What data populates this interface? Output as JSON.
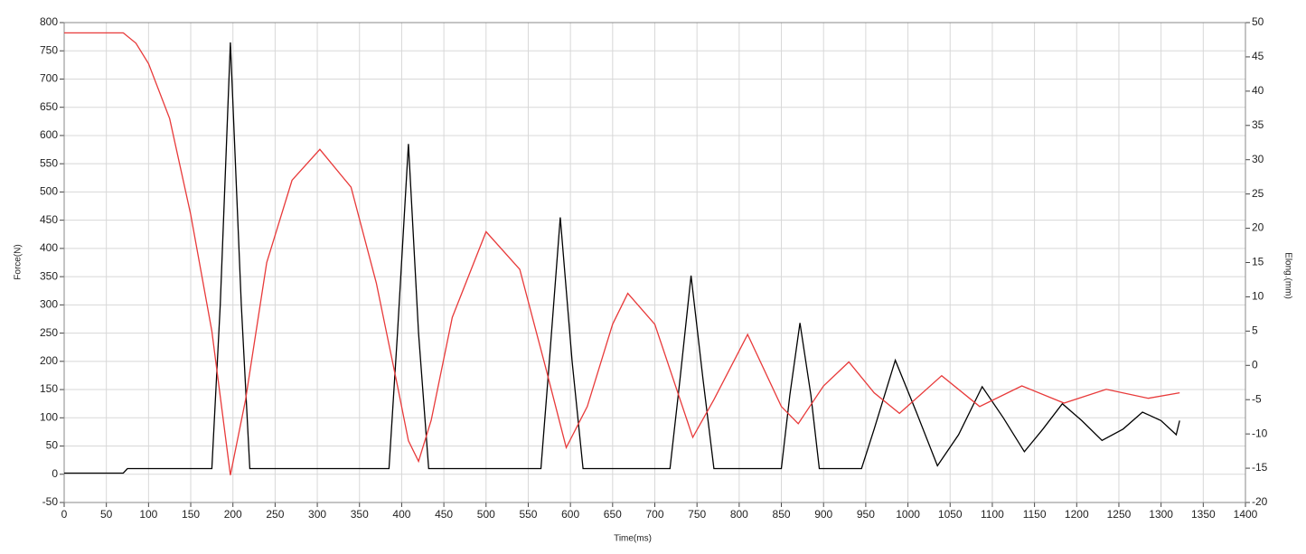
{
  "chart_data": {
    "type": "line",
    "xlabel": "Time(ms)",
    "ylabel": "Force(N)",
    "y2label": "Elong.(mm)",
    "xlim": [
      0,
      1400
    ],
    "xticks": [
      0,
      50,
      100,
      150,
      200,
      250,
      300,
      350,
      400,
      450,
      500,
      550,
      600,
      650,
      700,
      750,
      800,
      850,
      900,
      950,
      1000,
      1050,
      1100,
      1150,
      1200,
      1250,
      1300,
      1350,
      1400
    ],
    "ylim": [
      -50,
      800
    ],
    "yticks": [
      -50,
      0,
      50,
      100,
      150,
      200,
      250,
      300,
      350,
      400,
      450,
      500,
      550,
      600,
      650,
      700,
      750,
      800
    ],
    "y2lim": [
      -20,
      50
    ],
    "y2ticks": [
      -20,
      -15,
      -10,
      -5,
      0,
      5,
      10,
      15,
      20,
      25,
      30,
      35,
      40,
      45,
      50
    ],
    "grid": true,
    "series": [
      {
        "color": "#000000",
        "axis": "y",
        "x": [
          0,
          70,
          75,
          175,
          185,
          197,
          210,
          220,
          230,
          385,
          395,
          408,
          420,
          432,
          440,
          565,
          575,
          588,
          602,
          615,
          625,
          718,
          730,
          743,
          757,
          770,
          780,
          850,
          860,
          872,
          885,
          895,
          905,
          945,
          960,
          985,
          1010,
          1035,
          1060,
          1088,
          1113,
          1138,
          1160,
          1183,
          1206,
          1230,
          1255,
          1278,
          1300,
          1318,
          1322
        ],
        "values": [
          2,
          2,
          10,
          10,
          300,
          765,
          300,
          10,
          10,
          10,
          250,
          585,
          250,
          10,
          10,
          10,
          200,
          455,
          200,
          10,
          10,
          10,
          170,
          352,
          170,
          10,
          10,
          10,
          140,
          268,
          140,
          10,
          10,
          10,
          80,
          202,
          110,
          15,
          70,
          155,
          100,
          40,
          80,
          125,
          95,
          60,
          80,
          110,
          95,
          70,
          95
        ]
      },
      {
        "color": "#e83a3a",
        "axis": "y2",
        "x": [
          0,
          70,
          85,
          100,
          125,
          150,
          175,
          197,
          215,
          240,
          270,
          303,
          340,
          370,
          395,
          408,
          420,
          435,
          460,
          500,
          540,
          570,
          595,
          620,
          650,
          668,
          700,
          730,
          745,
          770,
          810,
          850,
          870,
          900,
          930,
          960,
          990,
          1040,
          1085,
          1135,
          1185,
          1235,
          1285,
          1322
        ],
        "values": [
          48.5,
          48.5,
          47,
          44,
          36,
          22,
          5,
          -16,
          -5,
          15,
          27,
          31.5,
          26,
          12,
          -3,
          -11,
          -14,
          -8,
          7,
          19.5,
          14,
          0,
          -12,
          -6,
          6,
          10.5,
          6,
          -5,
          -10.5,
          -5,
          4.5,
          -6,
          -8.5,
          -3,
          0.5,
          -4,
          -7,
          -1.5,
          -6,
          -3,
          -5.5,
          -3.5,
          -4.8,
          -4
        ]
      }
    ]
  }
}
